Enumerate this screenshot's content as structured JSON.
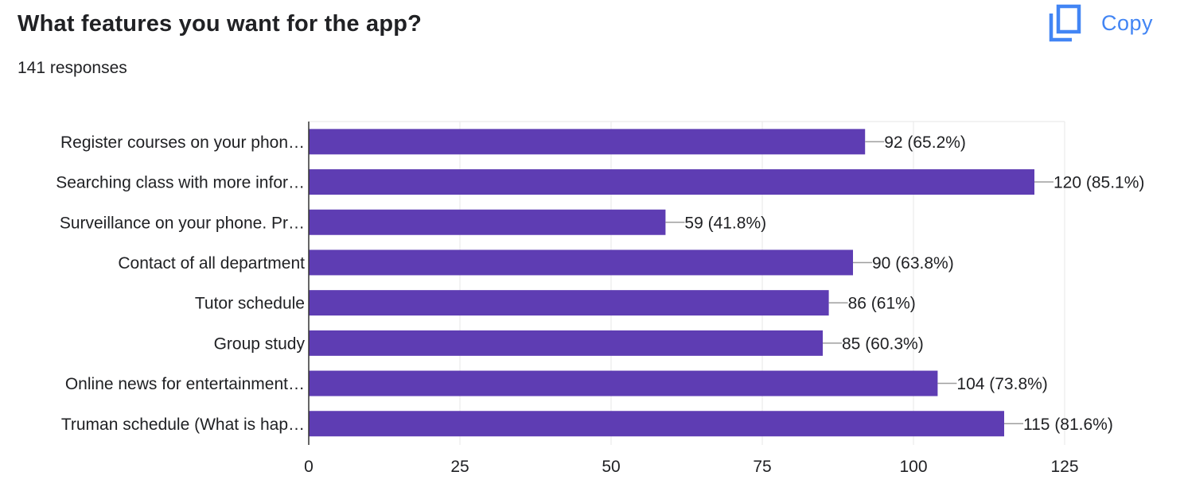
{
  "header": {
    "title": "What features you want for the app?",
    "responses": "141 responses",
    "copy_label": "Copy"
  },
  "icons": {
    "copy": "copy-icon"
  },
  "colors": {
    "bar": "#5e3db3",
    "accent": "#4285f4",
    "grid": "#ebebeb",
    "axis": "#333333",
    "text": "#202124"
  },
  "chart_data": {
    "type": "bar",
    "orientation": "horizontal",
    "categories": [
      "Register courses on your phon…",
      "Searching class with more infor…",
      "Surveillance on your phone. Pr…",
      "Contact of all department",
      "Tutor schedule",
      "Group study",
      "Online news for entertainment…",
      "Truman schedule (What is hap…"
    ],
    "values": [
      92,
      120,
      59,
      90,
      86,
      85,
      104,
      115
    ],
    "data_labels": [
      "92 (65.2%)",
      "120 (85.1%)",
      "59 (41.8%)",
      "90 (63.8%)",
      "86 (61%)",
      "85 (60.3%)",
      "104 (73.8%)",
      "115 (81.6%)"
    ],
    "xlim": [
      0,
      125
    ],
    "xticks": [
      0,
      25,
      50,
      75,
      100,
      125
    ],
    "xtick_labels": [
      "0",
      "25",
      "50",
      "75",
      "100",
      "125"
    ],
    "grid": true,
    "legend": "none"
  }
}
